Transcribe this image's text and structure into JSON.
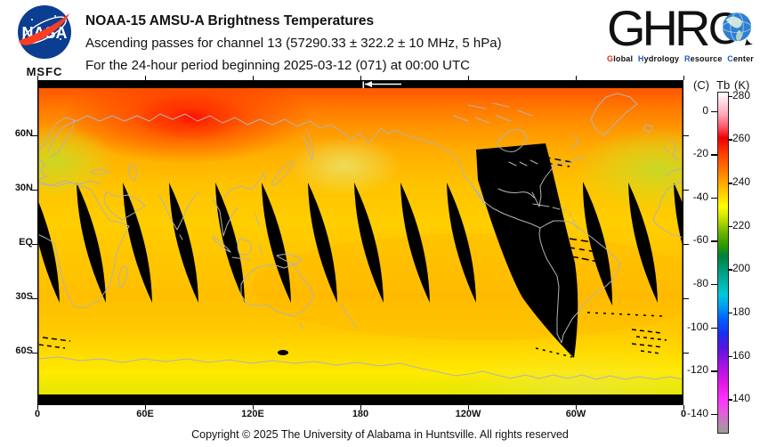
{
  "header": {
    "nasa_logo": {
      "text": "NASA",
      "msfc": "MSFC"
    },
    "title": "NOAA-15 AMSU-A Brightness Temperatures",
    "subtitle": "Ascending passes for channel 13 (57290.33 ± 322.2 ± 10 MHz, 5 hPa)",
    "period_line": "For the 24-hour period beginning 2025-03-12 (071) at 00:00 UTC",
    "ghrc_logo": {
      "ghr": "GHR",
      "c": "C",
      "tagline_words": [
        {
          "initial": "G",
          "rest": "lobal",
          "initial_color": "#d43318"
        },
        {
          "initial": "H",
          "rest": "ydrology",
          "initial_color": "#1e5bc6"
        },
        {
          "initial": "R",
          "rest": "esource",
          "initial_color": "#1e5bc6"
        },
        {
          "initial": "C",
          "rest": "enter",
          "initial_color": "#1e5bc6"
        }
      ]
    }
  },
  "map": {
    "lat_ticks": [
      {
        "label": "60N",
        "lat": 60
      },
      {
        "label": "30N",
        "lat": 30
      },
      {
        "label": "EQ",
        "lat": 0
      },
      {
        "label": "30S",
        "lat": -30
      },
      {
        "label": "60S",
        "lat": -60
      }
    ],
    "lon_ticks": [
      {
        "label": "0",
        "lon": 0
      },
      {
        "label": "60E",
        "lon": 60
      },
      {
        "label": "120E",
        "lon": 120
      },
      {
        "label": "180",
        "lon": 180
      },
      {
        "label": "120W",
        "lon": 240
      },
      {
        "label": "60W",
        "lon": 300
      },
      {
        "label": "0",
        "lon": 360
      }
    ],
    "time_marker_icon": "left-arrow-marker",
    "no_data_color": "#000000",
    "coastline_color": "#b3b3b3"
  },
  "colorbar": {
    "unit_left": "(C)",
    "quantity": "Tb",
    "unit_right": "(K)",
    "kelvin_ticks": [
      280,
      260,
      240,
      220,
      200,
      180,
      160,
      140
    ],
    "celsius_ticks": [
      0,
      -20,
      -40,
      -60,
      -80,
      -100,
      -120,
      -140
    ],
    "top_k": 282,
    "bottom_k": 124,
    "stops": [
      {
        "k": 282,
        "color": "#ffffff"
      },
      {
        "k": 278,
        "color": "#ffdde6"
      },
      {
        "k": 272,
        "color": "#ffaabb"
      },
      {
        "k": 266,
        "color": "#ff5566"
      },
      {
        "k": 261,
        "color": "#ee0000"
      },
      {
        "k": 253,
        "color": "#ff4400"
      },
      {
        "k": 246,
        "color": "#ff7700"
      },
      {
        "k": 240,
        "color": "#ffaa00"
      },
      {
        "k": 234,
        "color": "#ffd900"
      },
      {
        "k": 229,
        "color": "#ffff00"
      },
      {
        "k": 223,
        "color": "#c3dd00"
      },
      {
        "k": 217,
        "color": "#6cb500"
      },
      {
        "k": 211,
        "color": "#2d9900"
      },
      {
        "k": 206,
        "color": "#008040"
      },
      {
        "k": 200,
        "color": "#009977"
      },
      {
        "k": 194,
        "color": "#00b3a8"
      },
      {
        "k": 188,
        "color": "#00c8d8"
      },
      {
        "k": 183,
        "color": "#009ff2"
      },
      {
        "k": 177,
        "color": "#0061ff"
      },
      {
        "k": 170,
        "color": "#1b2df0"
      },
      {
        "k": 163,
        "color": "#5a14e0"
      },
      {
        "k": 155,
        "color": "#a713e6"
      },
      {
        "k": 147,
        "color": "#e316e3"
      },
      {
        "k": 140,
        "color": "#ff30ff"
      },
      {
        "k": 133,
        "color": "#e060d8"
      },
      {
        "k": 128,
        "color": "#b48aae"
      },
      {
        "k": 124,
        "color": "#a29a9e"
      }
    ]
  },
  "footer": {
    "copyright": "Copyright © 2025 The University of Alabama in Huntsville.  All rights reserved"
  },
  "chart_data": {
    "type": "heatmap",
    "title": "NOAA-15 AMSU-A Brightness Temperatures",
    "subtitle": "Ascending passes for channel 13 (57290.33 ± 322.2 ± 10 MHz, 5 hPa)",
    "period": "For the 24-hour period beginning 2025-03-12 (071) at 00:00 UTC",
    "projection": "equirectangular, longitude 0 to 360E left-to-right, latitude 90N top to 90S bottom",
    "x_ticks": [
      "0",
      "60E",
      "120E",
      "180",
      "120W",
      "60W",
      "0"
    ],
    "y_ticks": [
      "60N",
      "30N",
      "EQ",
      "30S",
      "60S"
    ],
    "colorbar": {
      "quantity": "Tb",
      "units": [
        "C",
        "K"
      ],
      "ticks_k": [
        280,
        260,
        240,
        220,
        200,
        180,
        160,
        140
      ],
      "ticks_c": [
        0,
        -20,
        -40,
        -60,
        -80,
        -100,
        -120,
        -140
      ],
      "top_k": 282,
      "bottom_k": 124
    },
    "regional_values_k": [
      {
        "region": "Arctic band 70-85N",
        "value": 252
      },
      {
        "region": "hot spot over north-central Siberia ~60-75N, 80-140E",
        "value": 263
      },
      {
        "region": "cool patch northern Europe ~55-65N, 0-30E",
        "value": 228
      },
      {
        "region": "cool patch NW Pacific ~40N near 180",
        "value": 232
      },
      {
        "region": "cool patch North Atlantic ~45-55N, 40W-10W",
        "value": 228
      },
      {
        "region": "tropics 30N-30S",
        "value": 240
      },
      {
        "region": "southern mid-latitudes",
        "value": 241
      },
      {
        "region": "55-70S band",
        "value": 236
      },
      {
        "region": "poleward of ~82N and ~72S",
        "value": null
      }
    ],
    "no_data": "Black areas: ~13 sliver-shaped gaps between ascending swaths spanning ~35N to ~45S, one wide missing swath over the Americas (~75W-105W, 40N-60S), plus polar strips at map top and bottom"
  }
}
